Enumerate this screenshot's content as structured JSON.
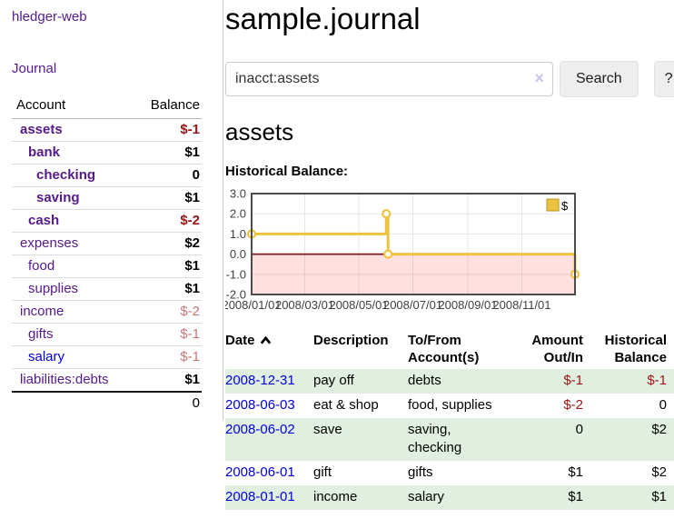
{
  "app": {
    "title": "hledger-web"
  },
  "sidebar": {
    "journal_link": "Journal",
    "accounts_header": {
      "account": "Account",
      "balance": "Balance"
    },
    "accounts": [
      {
        "name": "assets",
        "depth": 0,
        "balance": "$-1",
        "bold": true,
        "neg": "strong"
      },
      {
        "name": "bank",
        "depth": 1,
        "balance": "$1",
        "bold": true,
        "neg": "none"
      },
      {
        "name": "checking",
        "depth": 2,
        "balance": "0",
        "bold": true,
        "neg": "none"
      },
      {
        "name": "saving",
        "depth": 2,
        "balance": "$1",
        "bold": true,
        "neg": "none"
      },
      {
        "name": "cash",
        "depth": 1,
        "balance": "$-2",
        "bold": true,
        "neg": "strong"
      },
      {
        "name": "expenses",
        "depth": 0,
        "balance": "$2",
        "bold": false,
        "neg": "none"
      },
      {
        "name": "food",
        "depth": 1,
        "balance": "$1",
        "bold": false,
        "neg": "none"
      },
      {
        "name": "supplies",
        "depth": 1,
        "balance": "$1",
        "bold": false,
        "neg": "none"
      },
      {
        "name": "income",
        "depth": 0,
        "balance": "$-2",
        "bold": false,
        "neg": "muted"
      },
      {
        "name": "gifts",
        "depth": 1,
        "balance": "$-1",
        "bold": false,
        "neg": "muted"
      },
      {
        "name": "salary",
        "depth": 1,
        "balance": "$-1",
        "bold": false,
        "neg": "muted",
        "link_color": "blue"
      },
      {
        "name": "liabilities:debts",
        "depth": 0,
        "balance": "$1",
        "bold": false,
        "neg": "none"
      }
    ],
    "total": "0"
  },
  "header": {
    "title": "sample.journal"
  },
  "search": {
    "value": "inacct:assets",
    "clear_icon": "×",
    "button": "Search",
    "help_button": "?"
  },
  "account_page": {
    "heading": "assets",
    "chart_label": "Historical Balance:"
  },
  "chart_data": {
    "type": "line",
    "title": "Historical Balance:",
    "series": [
      {
        "name": "$",
        "steps": true,
        "points": [
          {
            "date": "2008-01-01",
            "value": 1
          },
          {
            "date": "2008-06-01",
            "value": 2
          },
          {
            "date": "2008-06-03",
            "value": 0
          },
          {
            "date": "2008-12-31",
            "value": -1
          }
        ]
      }
    ],
    "x_range": [
      "2008-01-01",
      "2008-12-31"
    ],
    "ylim": [
      -2,
      3
    ],
    "yticks": [
      {
        "value": 3,
        "label": "3.0"
      },
      {
        "value": 2,
        "label": "2.0"
      },
      {
        "value": 1,
        "label": "1.0"
      },
      {
        "value": 0,
        "label": "0.0"
      },
      {
        "value": -1,
        "label": "-1.0"
      },
      {
        "value": -2,
        "label": "-2.0"
      }
    ],
    "xticks": [
      {
        "date": "2008-01-01",
        "label": "2008/01/01"
      },
      {
        "date": "2008-03-01",
        "label": "2008/03/01"
      },
      {
        "date": "2008-05-01",
        "label": "2008/05/01"
      },
      {
        "date": "2008-07-01",
        "label": "2008/07/01"
      },
      {
        "date": "2008-09-01",
        "label": "2008/09/01"
      },
      {
        "date": "2008-11-01",
        "label": "2008/11/01"
      }
    ],
    "legend_position": "top-right",
    "grid": true,
    "colors": {
      "line": "#edc240",
      "point_fill": "#ffffff",
      "negative_region": "rgba(255,0,0,0.12)",
      "zero_line": "#7c1b1b",
      "grid": "#e6e6e6",
      "border": "#4c4c4c",
      "axis_text": "#3f3f3f",
      "legend_box_border": "#b8962e"
    }
  },
  "register": {
    "columns": [
      {
        "label": "Date",
        "sortable": true
      },
      {
        "label": "Description"
      },
      {
        "label": "To/From Account(s)"
      },
      {
        "label": "Amount Out/In",
        "align": "right"
      },
      {
        "label": "Historical Balance",
        "align": "right"
      }
    ],
    "rows": [
      {
        "date": "2008-12-31",
        "description": "pay off",
        "to_from": "debts",
        "amount": "$-1",
        "balance": "$-1"
      },
      {
        "date": "2008-06-03",
        "description": "eat & shop",
        "to_from": "food, supplies",
        "amount": "$-2",
        "balance": "0"
      },
      {
        "date": "2008-06-02",
        "description": "save",
        "to_from": "saving, checking",
        "amount": "0",
        "balance": "$2"
      },
      {
        "date": "2008-06-01",
        "description": "gift",
        "to_from": "gifts",
        "amount": "$1",
        "balance": "$2"
      },
      {
        "date": "2008-01-01",
        "description": "income",
        "to_from": "salary",
        "amount": "$1",
        "balance": "$1"
      }
    ]
  },
  "colors": {
    "link_purple": "#551a8b",
    "link_blue": "#0000dd",
    "negative_strong": "#9b1616",
    "negative_muted": "#c47979",
    "row_green": "#e1efe1",
    "button_bg": "#eeeeee"
  }
}
